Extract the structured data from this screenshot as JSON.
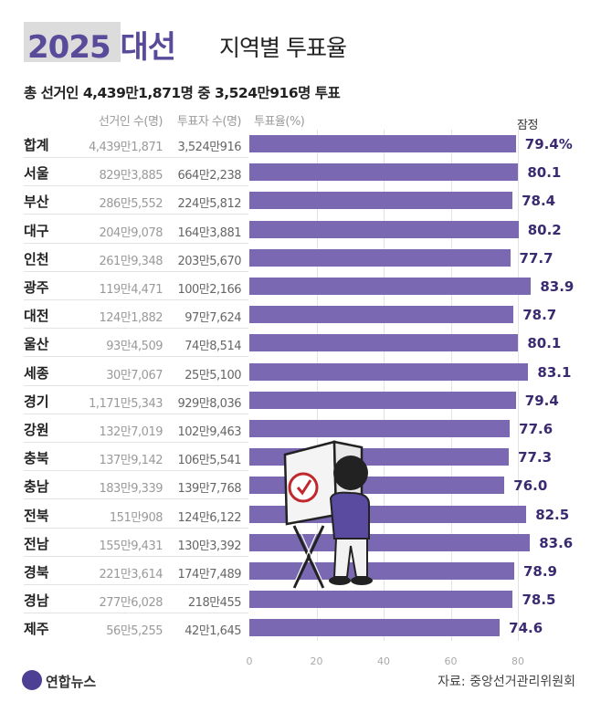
{
  "title": {
    "main": "2025 대선",
    "sub": "지역별 투표율"
  },
  "subtitle": "총 선거인 4,439만1,871명 중 3,524만916명 투표",
  "headers": {
    "voters": "선거인 수(명)",
    "cast": "투표자 수(명)",
    "rate": "투표율(%)",
    "prelim": "잠정"
  },
  "source": "자료: 중앙선거관리위원회",
  "logo": "연합뉴스",
  "colors": {
    "bar": "#7a68b3",
    "title": "#5a4a9a",
    "rate_text": "#3a2a70",
    "logo": "#4d3f93"
  },
  "chart_data": {
    "type": "bar",
    "orientation": "horizontal",
    "title": "2025 대선 지역별 투표율",
    "xlim": [
      0,
      80
    ],
    "xticks": [
      "0",
      "20",
      "40",
      "60",
      "80"
    ],
    "categories": [
      "합계",
      "서울",
      "부산",
      "대구",
      "인천",
      "광주",
      "대전",
      "울산",
      "세종",
      "경기",
      "강원",
      "충북",
      "충남",
      "전북",
      "전남",
      "경북",
      "경남",
      "제주"
    ],
    "values": [
      79.4,
      80.1,
      78.4,
      80.2,
      77.7,
      83.9,
      78.7,
      80.1,
      83.1,
      79.4,
      77.6,
      77.3,
      76.0,
      82.5,
      83.6,
      78.9,
      78.5,
      74.6
    ],
    "value_labels": [
      "79.4%",
      "80.1",
      "78.4",
      "80.2",
      "77.7",
      "83.9",
      "78.7",
      "80.1",
      "83.1",
      "79.4",
      "77.6",
      "77.3",
      "76.0",
      "82.5",
      "83.6",
      "78.9",
      "78.5",
      "74.6"
    ],
    "voters": [
      "4,439만1,871",
      "829만3,885",
      "286만5,552",
      "204만9,078",
      "261만9,348",
      "119만4,471",
      "124만1,882",
      "93만4,509",
      "30만7,067",
      "1,171만5,343",
      "132만7,019",
      "137만9,142",
      "183만9,339",
      "151만908",
      "155만9,431",
      "221만3,614",
      "277만6,028",
      "56만5,255"
    ],
    "cast": [
      "3,524만916",
      "664만2,238",
      "224만5,812",
      "164만3,881",
      "203만5,670",
      "100만2,166",
      "97만7,624",
      "74만8,514",
      "25만5,100",
      "929만8,036",
      "102만9,463",
      "106만5,541",
      "139만7,768",
      "124만6,122",
      "130만3,392",
      "174만7,489",
      "218만455",
      "42만1,645"
    ]
  }
}
